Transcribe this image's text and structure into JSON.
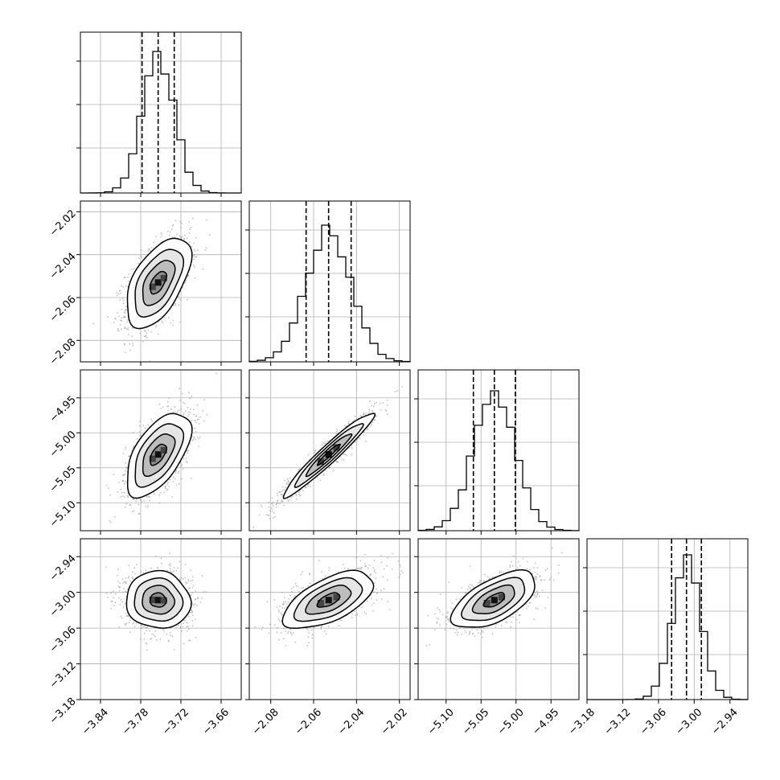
{
  "chart_data": {
    "type": "corner",
    "title": "",
    "colors": {
      "hist": "#000000",
      "points": "#8c8c8c",
      "grid": "#b0b0b0",
      "frame": "#000000"
    },
    "grid": true,
    "parameters": [
      {
        "range": [
          -3.87,
          -3.63
        ],
        "ticks": [
          -3.84,
          -3.78,
          -3.72,
          -3.66
        ],
        "tick_labels": [
          "−3.84",
          "−3.78",
          "−3.72",
          "−3.66"
        ],
        "mean": -3.754,
        "sd": 0.024,
        "quantiles": [
          -3.778,
          -3.754,
          -3.73
        ],
        "peak": 0.88
      },
      {
        "range": [
          -2.09,
          -2.015
        ],
        "ticks": [
          -2.08,
          -2.06,
          -2.04,
          -2.02
        ],
        "tick_labels": [
          "−2.08",
          "−2.06",
          "−2.04",
          "−2.02"
        ],
        "mean": -2.053,
        "sd": 0.0105,
        "quantiles": [
          -2.0635,
          -2.053,
          -2.0425
        ],
        "peak": 0.85
      },
      {
        "range": [
          -5.14,
          -4.91
        ],
        "ticks": [
          -5.1,
          -5.05,
          -5.0,
          -4.95
        ],
        "tick_labels": [
          "−5.10",
          "−5.05",
          "−5.00",
          "−4.95"
        ],
        "mean": -5.031,
        "sd": 0.03,
        "quantiles": [
          -5.061,
          -5.031,
          -5.001
        ],
        "peak": 0.87
      },
      {
        "range": [
          -3.18,
          -2.91
        ],
        "ticks": [
          -3.18,
          -3.12,
          -3.06,
          -3.0,
          -2.94
        ],
        "tick_labels": [
          "−3.18",
          "−3.12",
          "−3.06",
          "−3.00",
          "−2.94"
        ],
        "mean": -3.013,
        "sd": 0.024,
        "quantiles": [
          -3.038,
          -3.013,
          -2.988
        ],
        "peak": 0.9
      }
    ],
    "correlations": [
      [
        1.0,
        0.55,
        0.58,
        -0.05
      ],
      [
        0.55,
        1.0,
        0.96,
        0.6
      ],
      [
        0.58,
        0.96,
        1.0,
        0.6
      ],
      [
        -0.05,
        0.6,
        0.6,
        1.0
      ]
    ],
    "hist_bins": 20,
    "contour_levels_sigma": [
      0.5,
      1.0,
      1.5,
      2.0
    ],
    "sample_points": 1400
  }
}
